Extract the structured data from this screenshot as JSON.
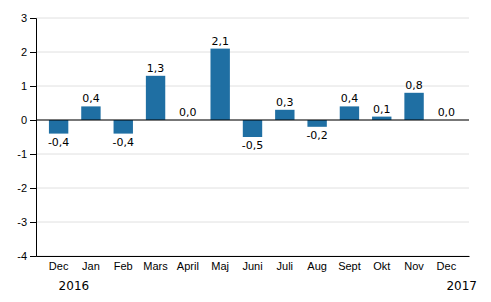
{
  "chart_data": {
    "type": "bar",
    "categories": [
      "Dec",
      "Jan",
      "Feb",
      "Mars",
      "April",
      "Maj",
      "Juni",
      "Juli",
      "Aug",
      "Sept",
      "Okt",
      "Nov",
      "Dec"
    ],
    "values": [
      -0.4,
      0.4,
      -0.4,
      1.3,
      0.0,
      2.1,
      -0.5,
      0.3,
      -0.2,
      0.4,
      0.1,
      0.8,
      0.0
    ],
    "value_labels": [
      "-0,4",
      "0,4",
      "-0,4",
      "1,3",
      "0,0",
      "2,1",
      "-0,5",
      "0,3",
      "-0,2",
      "0,4",
      "0,1",
      "0,8",
      "0,0"
    ],
    "data_labels": true,
    "color": "#1f6fa3",
    "ylim": [
      -4,
      3
    ],
    "yticks": [
      -4,
      -3,
      -2,
      -1,
      0,
      1,
      2,
      3
    ],
    "grid": true,
    "annotations": [
      {
        "text": "2016",
        "index": 0
      },
      {
        "text": "2017",
        "index": 12
      }
    ]
  }
}
